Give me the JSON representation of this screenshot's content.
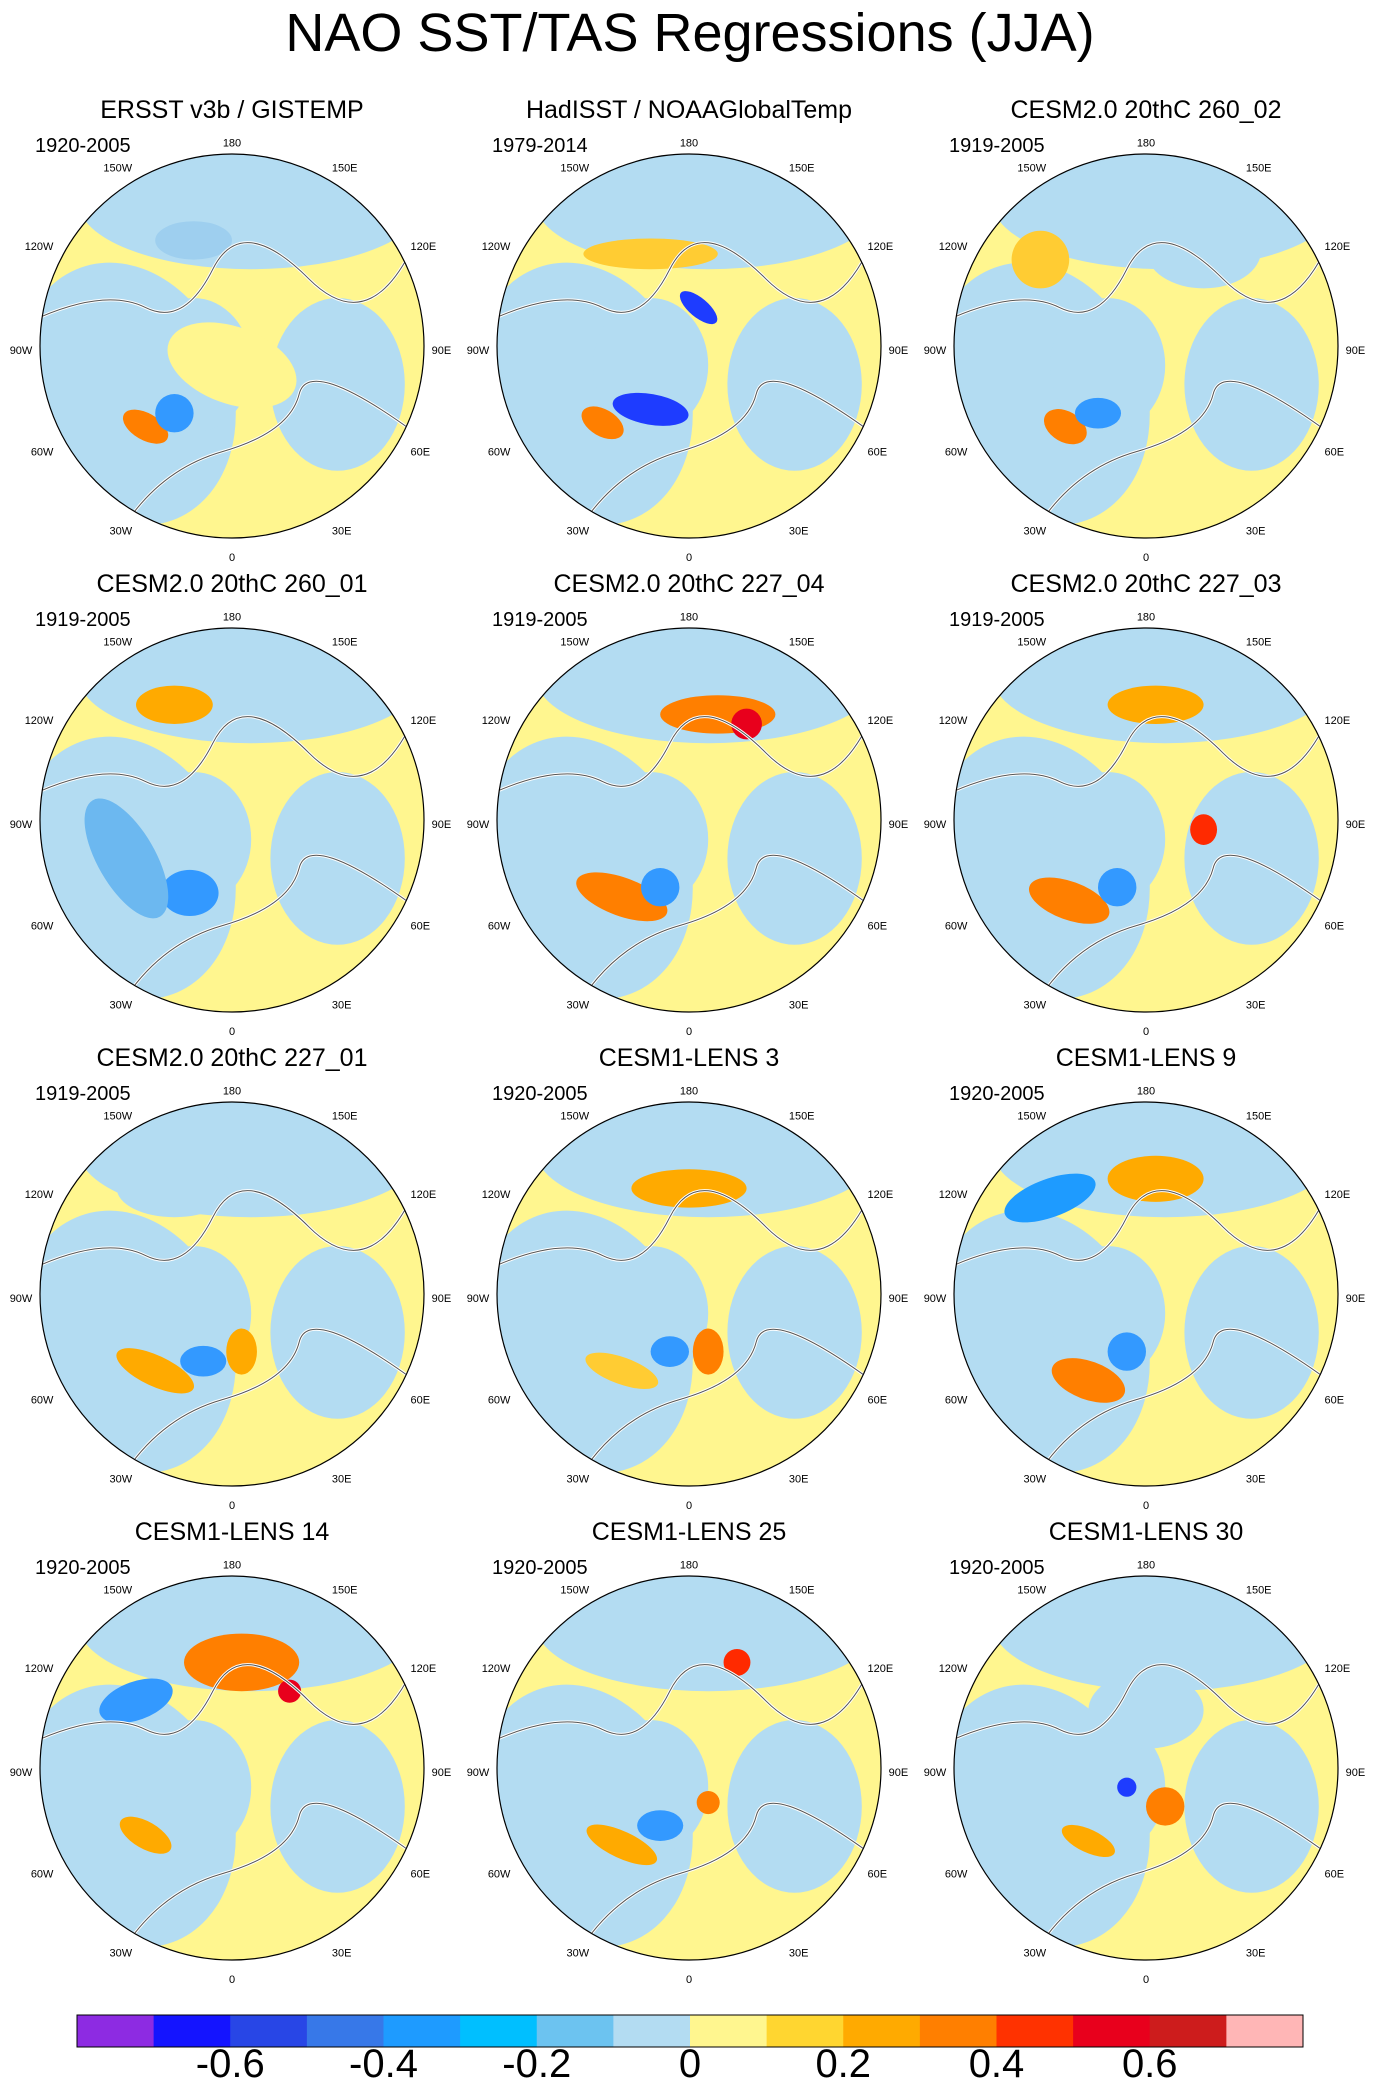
{
  "title": "NAO SST/TAS Regressions (JJA)",
  "projection": "north-polar-stereographic",
  "longitude_labels": {
    "top": "180",
    "bottom": "0",
    "upper_left": "150W",
    "upper_right": "150E",
    "left_upper": "120W",
    "right_upper": "120E",
    "left": "90W",
    "right": "90E",
    "left_lower": "60W",
    "right_lower": "60E",
    "lower_left": "30W",
    "lower_right": "30E"
  },
  "panels": [
    {
      "title": "ERSST v3b / GISTEMP",
      "period": "1920-2005",
      "blobs": [
        [
          -0.45,
          0.42,
          0.13,
          0.07,
          "#ff7f00",
          30
        ],
        [
          -0.3,
          0.35,
          0.1,
          0.1,
          "#3399ff",
          0
        ],
        [
          0.0,
          0.1,
          0.35,
          0.2,
          "#fff68f",
          20
        ],
        [
          -0.2,
          -0.55,
          0.2,
          0.1,
          "#9ecfef",
          0
        ]
      ]
    },
    {
      "title": "HadISST / NOAAGlobalTemp",
      "period": "1979-2014",
      "blobs": [
        [
          -0.45,
          0.4,
          0.12,
          0.07,
          "#ff7f00",
          30
        ],
        [
          -0.2,
          0.33,
          0.2,
          0.08,
          "#1e3cff",
          10
        ],
        [
          0.05,
          -0.2,
          0.12,
          0.05,
          "#1e3cff",
          40
        ],
        [
          -0.2,
          -0.48,
          0.35,
          0.08,
          "#ffcc33",
          0
        ]
      ]
    },
    {
      "title": "CESM2.0 20thC 260_02",
      "period": "1919-2005",
      "blobs": [
        [
          -0.42,
          0.42,
          0.12,
          0.08,
          "#ff7f00",
          30
        ],
        [
          -0.25,
          0.35,
          0.12,
          0.08,
          "#3399ff",
          0
        ],
        [
          -0.55,
          -0.45,
          0.15,
          0.15,
          "#ffcc33",
          0
        ],
        [
          0.3,
          -0.5,
          0.3,
          0.2,
          "#b3dcf2",
          0
        ]
      ]
    },
    {
      "title": "CESM2.0 20thC 260_01",
      "period": "1919-2005",
      "blobs": [
        [
          -0.45,
          0.35,
          0.07,
          0.07,
          "#ff2a00",
          0
        ],
        [
          -0.22,
          0.38,
          0.15,
          0.12,
          "#3399ff",
          0
        ],
        [
          -0.3,
          -0.6,
          0.2,
          0.1,
          "#ffaa00",
          0
        ],
        [
          -0.55,
          0.2,
          0.15,
          0.35,
          "#6cb8f0",
          -30
        ]
      ]
    },
    {
      "title": "CESM2.0 20thC 227_04",
      "period": "1919-2005",
      "blobs": [
        [
          -0.35,
          0.4,
          0.25,
          0.1,
          "#ff7f00",
          20
        ],
        [
          -0.15,
          0.35,
          0.1,
          0.1,
          "#3399ff",
          0
        ],
        [
          0.15,
          -0.55,
          0.3,
          0.1,
          "#ff7f00",
          0
        ],
        [
          0.3,
          -0.5,
          0.08,
          0.08,
          "#e8001c",
          0
        ]
      ]
    },
    {
      "title": "CESM2.0 20thC 227_03",
      "period": "1919-2005",
      "blobs": [
        [
          -0.4,
          0.42,
          0.22,
          0.1,
          "#ff7f00",
          20
        ],
        [
          -0.15,
          0.35,
          0.1,
          0.1,
          "#3399ff",
          0
        ],
        [
          0.05,
          -0.6,
          0.25,
          0.1,
          "#ffaa00",
          0
        ],
        [
          0.3,
          0.05,
          0.07,
          0.08,
          "#ff2a00",
          0
        ]
      ]
    },
    {
      "title": "CESM2.0 20thC 227_01",
      "period": "1919-2005",
      "blobs": [
        [
          -0.4,
          0.4,
          0.22,
          0.08,
          "#ffaa00",
          25
        ],
        [
          -0.15,
          0.35,
          0.12,
          0.08,
          "#3399ff",
          0
        ],
        [
          -0.3,
          -0.55,
          0.3,
          0.15,
          "#b3dcf2",
          0
        ],
        [
          0.05,
          0.3,
          0.08,
          0.12,
          "#ffaa00",
          0
        ]
      ]
    },
    {
      "title": "CESM1-LENS 3",
      "period": "1920-2005",
      "blobs": [
        [
          -0.35,
          0.4,
          0.2,
          0.07,
          "#ffcc33",
          20
        ],
        [
          -0.1,
          0.3,
          0.1,
          0.08,
          "#3399ff",
          0
        ],
        [
          0.0,
          -0.55,
          0.3,
          0.1,
          "#ffaa00",
          0
        ],
        [
          0.1,
          0.3,
          0.08,
          0.12,
          "#ff7f00",
          0
        ]
      ]
    },
    {
      "title": "CESM1-LENS 9",
      "period": "1920-2005",
      "blobs": [
        [
          -0.3,
          0.45,
          0.2,
          0.1,
          "#ff7f00",
          20
        ],
        [
          -0.5,
          -0.5,
          0.25,
          0.1,
          "#1e9bff",
          -20
        ],
        [
          0.05,
          -0.6,
          0.25,
          0.12,
          "#ffaa00",
          0
        ],
        [
          -0.1,
          0.3,
          0.1,
          0.1,
          "#3399ff",
          0
        ]
      ]
    },
    {
      "title": "CESM1-LENS 14",
      "period": "1920-2005",
      "blobs": [
        [
          -0.45,
          0.35,
          0.15,
          0.07,
          "#ffaa00",
          30
        ],
        [
          -0.5,
          -0.35,
          0.2,
          0.1,
          "#3399ff",
          -20
        ],
        [
          0.05,
          -0.55,
          0.3,
          0.15,
          "#ff7f00",
          0
        ],
        [
          0.3,
          -0.4,
          0.06,
          0.06,
          "#e8001c",
          0
        ]
      ]
    },
    {
      "title": "CESM1-LENS 25",
      "period": "1920-2005",
      "blobs": [
        [
          -0.35,
          0.4,
          0.2,
          0.07,
          "#ffaa00",
          25
        ],
        [
          -0.15,
          0.3,
          0.12,
          0.08,
          "#3399ff",
          0
        ],
        [
          0.25,
          -0.55,
          0.07,
          0.07,
          "#ff2a00",
          0
        ],
        [
          0.1,
          0.18,
          0.06,
          0.06,
          "#ff7f00",
          0
        ]
      ]
    },
    {
      "title": "CESM1-LENS 30",
      "period": "1920-2005",
      "blobs": [
        [
          -0.3,
          0.38,
          0.15,
          0.06,
          "#ffaa00",
          25
        ],
        [
          -0.1,
          0.1,
          0.05,
          0.05,
          "#1e3cff",
          0
        ],
        [
          0.1,
          0.2,
          0.1,
          0.1,
          "#ff7f00",
          0
        ],
        [
          0.0,
          -0.3,
          0.3,
          0.2,
          "#b3dcf2",
          0
        ]
      ]
    }
  ],
  "colorbar": {
    "colors": [
      "#8d2be2",
      "#1414ff",
      "#2846e6",
      "#3778e8",
      "#1e9bff",
      "#00bfff",
      "#6cc3f0",
      "#b3dcf2",
      "#fff68f",
      "#ffd630",
      "#ffaa00",
      "#ff7f00",
      "#ff3200",
      "#e8001c",
      "#cd1c1c",
      "#ffb6b6"
    ],
    "labels": [
      "-0.6",
      "-0.4",
      "-0.2",
      "0",
      "0.2",
      "0.4",
      "0.6"
    ]
  }
}
